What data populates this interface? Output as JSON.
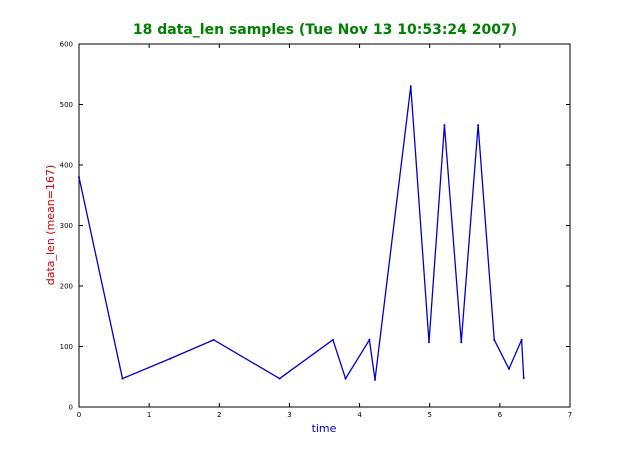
{
  "chart_data": {
    "type": "line",
    "title": "18 data_len samples (Tue Nov 13 10:53:24 2007)",
    "xlabel": "time",
    "ylabel": "data_len (mean=167)",
    "xlim": [
      0,
      7
    ],
    "ylim": [
      0,
      600
    ],
    "xticks": [
      "0",
      "1",
      "2",
      "3",
      "4",
      "5",
      "6",
      "7"
    ],
    "yticks": [
      "0",
      "100",
      "200",
      "300",
      "400",
      "500",
      "600"
    ],
    "grid": false,
    "series": [
      {
        "color": "#0000cc",
        "x": [
          0,
          0.62,
          1.3,
          1.92,
          2.86,
          3.62,
          3.8,
          4.14,
          4.22,
          4.73,
          4.99,
          5.21,
          5.45,
          5.69,
          5.92,
          6.13,
          6.31,
          6.34
        ],
        "y": [
          380,
          47,
          80,
          111,
          47,
          111,
          47,
          111,
          45,
          530,
          107,
          466,
          107,
          466,
          111,
          63,
          111,
          48
        ]
      }
    ]
  },
  "colors": {
    "title": "#008000",
    "xlabel": "#0000cc",
    "ylabel": "#cc0000",
    "line": "#0000cc",
    "axes": "#000000"
  }
}
